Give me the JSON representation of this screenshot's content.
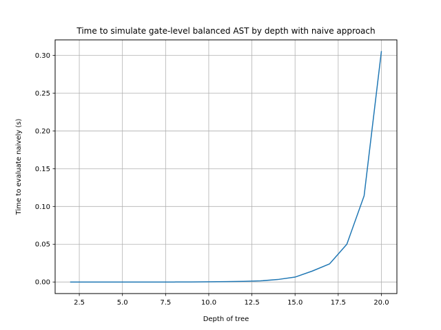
{
  "chart_data": {
    "type": "line",
    "title": "Time to simulate gate-level balanced AST by depth with naive approach",
    "xlabel": "Depth of tree",
    "ylabel": "Time to evaluate naively (s)",
    "xlim": [
      1.1,
      20.9
    ],
    "ylim": [
      -0.0153,
      0.3205
    ],
    "xticks": [
      2.5,
      5.0,
      7.5,
      10.0,
      12.5,
      15.0,
      17.5,
      20.0
    ],
    "xtick_labels": [
      "2.5",
      "5.0",
      "7.5",
      "10.0",
      "12.5",
      "15.0",
      "17.5",
      "20.0"
    ],
    "yticks": [
      0.0,
      0.05,
      0.1,
      0.15,
      0.2,
      0.25,
      0.3
    ],
    "ytick_labels": [
      "0.00",
      "0.05",
      "0.10",
      "0.15",
      "0.20",
      "0.25",
      "0.30"
    ],
    "grid": true,
    "series": [
      {
        "color": "#1f77b4",
        "x": [
          2,
          3,
          4,
          5,
          6,
          7,
          8,
          9,
          10,
          11,
          12,
          13,
          14,
          15,
          16,
          17,
          18,
          19,
          20
        ],
        "values": [
          0.0,
          0.0,
          0.0,
          0.0,
          0.0,
          0.0,
          0.0,
          0.0001,
          0.0003,
          0.0005,
          0.0008,
          0.0015,
          0.0033,
          0.0065,
          0.0145,
          0.024,
          0.05,
          0.114,
          0.305
        ]
      }
    ]
  }
}
